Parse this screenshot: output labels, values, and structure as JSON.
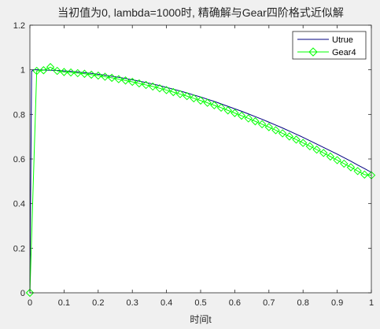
{
  "chart_data": {
    "type": "line",
    "title": "当初值为0, lambda=1000时, 精确解与Gear四阶格式近似解",
    "xlabel": "时间t",
    "ylabel": "",
    "xlim": [
      0,
      1
    ],
    "ylim": [
      0,
      1.2
    ],
    "x_ticks": [
      "0",
      "0.1",
      "0.2",
      "0.3",
      "0.4",
      "0.5",
      "0.6",
      "0.7",
      "0.8",
      "0.9",
      "1"
    ],
    "y_ticks": [
      "0",
      "0.2",
      "0.4",
      "0.6",
      "0.8",
      "1",
      "1.2"
    ],
    "grid": false,
    "legend_position": "top-right",
    "series": [
      {
        "name": "Utrue",
        "color": "#00007f",
        "marker": "none",
        "x": [
          0,
          0.005,
          0.01,
          0.015,
          0.02,
          0.04,
          0.06,
          0.08,
          0.1,
          0.12,
          0.14,
          0.16,
          0.18,
          0.2,
          0.22,
          0.24,
          0.26,
          0.28,
          0.3,
          0.32,
          0.34,
          0.36,
          0.38,
          0.4,
          0.42,
          0.44,
          0.46,
          0.48,
          0.5,
          0.52,
          0.54,
          0.56,
          0.58,
          0.6,
          0.62,
          0.64,
          0.66,
          0.68,
          0.7,
          0.72,
          0.74,
          0.76,
          0.78,
          0.8,
          0.82,
          0.84,
          0.86,
          0.88,
          0.9,
          0.92,
          0.94,
          0.96,
          0.98,
          1.0
        ],
        "y": [
          0,
          0.993,
          1.0,
          1.0,
          1.0,
          0.999,
          0.998,
          0.997,
          0.995,
          0.993,
          0.99,
          0.987,
          0.984,
          0.98,
          0.976,
          0.971,
          0.966,
          0.961,
          0.955,
          0.949,
          0.943,
          0.936,
          0.929,
          0.921,
          0.913,
          0.905,
          0.896,
          0.887,
          0.878,
          0.868,
          0.858,
          0.847,
          0.836,
          0.825,
          0.814,
          0.802,
          0.79,
          0.778,
          0.765,
          0.752,
          0.739,
          0.725,
          0.711,
          0.697,
          0.682,
          0.667,
          0.652,
          0.637,
          0.622,
          0.606,
          0.59,
          0.573,
          0.557,
          0.54
        ]
      },
      {
        "name": "Gear4",
        "color": "#00ff00",
        "marker": "diamond",
        "x": [
          0,
          0.02,
          0.04,
          0.06,
          0.08,
          0.1,
          0.12,
          0.14,
          0.16,
          0.18,
          0.2,
          0.22,
          0.24,
          0.26,
          0.28,
          0.3,
          0.32,
          0.34,
          0.36,
          0.38,
          0.4,
          0.42,
          0.44,
          0.46,
          0.48,
          0.5,
          0.52,
          0.54,
          0.56,
          0.58,
          0.6,
          0.62,
          0.64,
          0.66,
          0.68,
          0.7,
          0.72,
          0.74,
          0.76,
          0.78,
          0.8,
          0.82,
          0.84,
          0.86,
          0.88,
          0.9,
          0.92,
          0.94,
          0.96,
          0.98,
          1.0
        ],
        "y": [
          0,
          0.995,
          0.998,
          1.012,
          0.995,
          0.99,
          0.988,
          0.985,
          0.982,
          0.978,
          0.974,
          0.969,
          0.964,
          0.958,
          0.952,
          0.946,
          0.939,
          0.932,
          0.925,
          0.917,
          0.909,
          0.9,
          0.891,
          0.882,
          0.872,
          0.862,
          0.852,
          0.841,
          0.83,
          0.818,
          0.806,
          0.794,
          0.782,
          0.769,
          0.756,
          0.743,
          0.729,
          0.715,
          0.701,
          0.687,
          0.672,
          0.657,
          0.642,
          0.627,
          0.611,
          0.595,
          0.579,
          0.563,
          0.546,
          0.53,
          0.527
        ]
      }
    ]
  }
}
